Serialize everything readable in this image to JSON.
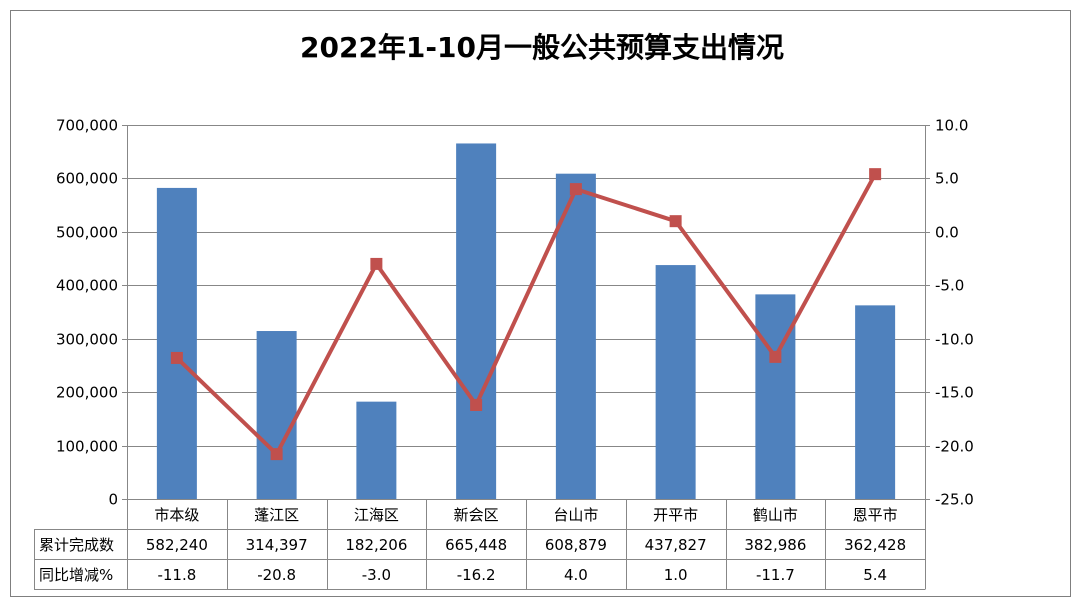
{
  "chart_data": {
    "type": "bar",
    "title": "2022年1-10月一般公共预算支出情况",
    "categories": [
      "市本级",
      "蓬江区",
      "江海区",
      "新会区",
      "台山市",
      "开平市",
      "鹤山市",
      "恩平市"
    ],
    "series": [
      {
        "name": "累计完成数",
        "type": "bar",
        "axis": "left",
        "values": [
          582240,
          314397,
          182206,
          665448,
          608879,
          437827,
          382986,
          362428
        ],
        "labels": [
          "582,240",
          "314,397",
          "182,206",
          "665,448",
          "608,879",
          "437,827",
          "382,986",
          "362,428"
        ]
      },
      {
        "name": "同比增减%",
        "type": "line",
        "axis": "right",
        "values": [
          -11.8,
          -20.8,
          -3.0,
          -16.2,
          4.0,
          1.0,
          -11.7,
          5.4
        ],
        "labels": [
          "-11.8",
          "-20.8",
          "-3.0",
          "-16.2",
          "4.0",
          "1.0",
          "-11.7",
          "5.4"
        ]
      }
    ],
    "y_left": {
      "min": 0,
      "max": 700000,
      "step": 100000,
      "ticks": [
        "0",
        "100,000",
        "200,000",
        "300,000",
        "400,000",
        "500,000",
        "600,000",
        "700,000"
      ]
    },
    "y_right": {
      "min": -25,
      "max": 10,
      "step": 5,
      "ticks": [
        "-25.0",
        "-20.0",
        "-15.0",
        "-10.0",
        "-5.0",
        "0.0",
        "5.0",
        "10.0"
      ]
    },
    "grid": true,
    "legend": "data-table-below",
    "colors": {
      "bar": "#4F81BD",
      "line": "#C0504D",
      "grid": "#878787",
      "axis": "#878787"
    }
  }
}
